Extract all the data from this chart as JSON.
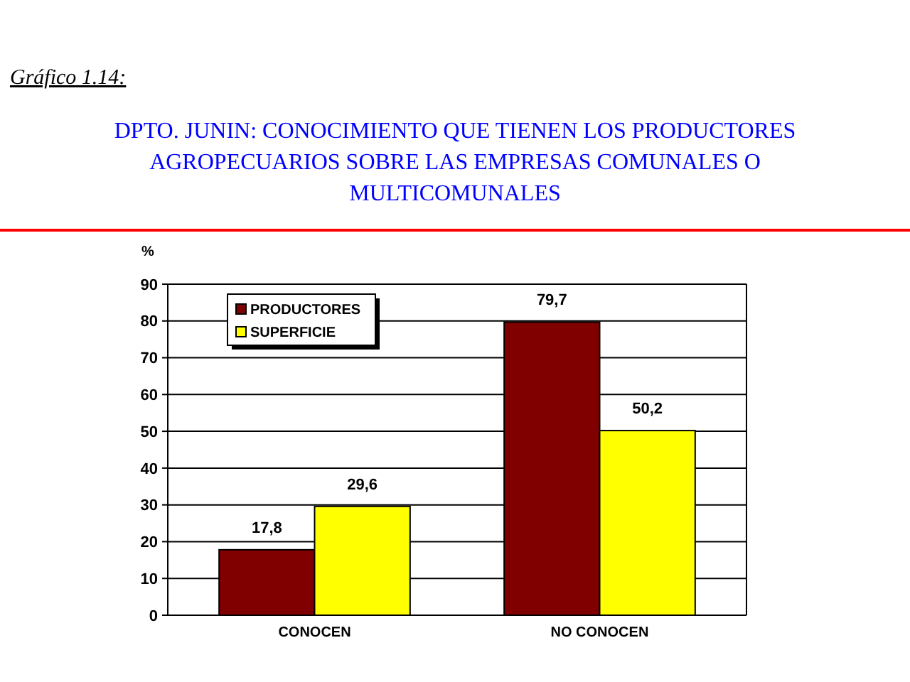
{
  "chart_data": {
    "type": "bar",
    "title": "DPTO. JUNIN: CONOCIMIENTO QUE TIENEN LOS PRODUCTORES AGROPECUARIOS SOBRE LAS EMPRESAS COMUNALES O MULTICOMUNALES",
    "annotations": [
      "Gráfico 1.14:"
    ],
    "ylabel": "%",
    "categories": [
      "CONOCEN",
      "NO CONOCEN"
    ],
    "series": [
      {
        "name": "PRODUCTORES",
        "color": "#800000",
        "values": [
          17.8,
          79.7
        ],
        "value_labels": [
          "17,8",
          "79,7"
        ]
      },
      {
        "name": "SUPERFICIE",
        "color": "#ffff00",
        "values": [
          29.6,
          50.2
        ],
        "value_labels": [
          "29,6",
          "50,2"
        ]
      }
    ],
    "ylim": [
      0,
      90
    ],
    "yticks": [
      0,
      10,
      20,
      30,
      40,
      50,
      60,
      70,
      80,
      90
    ],
    "grid": "y",
    "legend": "top left"
  }
}
